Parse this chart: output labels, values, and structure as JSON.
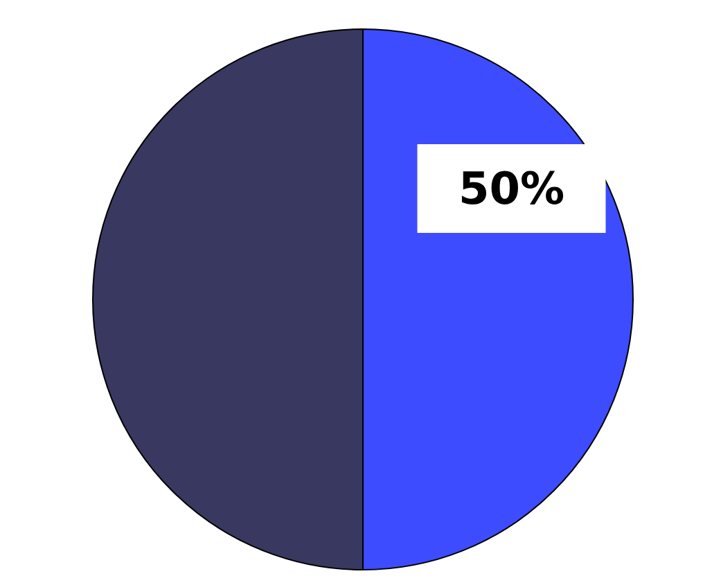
{
  "chart_data": {
    "type": "pie",
    "categories": [
      null,
      null
    ],
    "values": [
      50,
      50
    ],
    "colors": [
      "#3d4cff",
      "#383860"
    ],
    "value_labels": [
      "50%",
      null
    ]
  }
}
